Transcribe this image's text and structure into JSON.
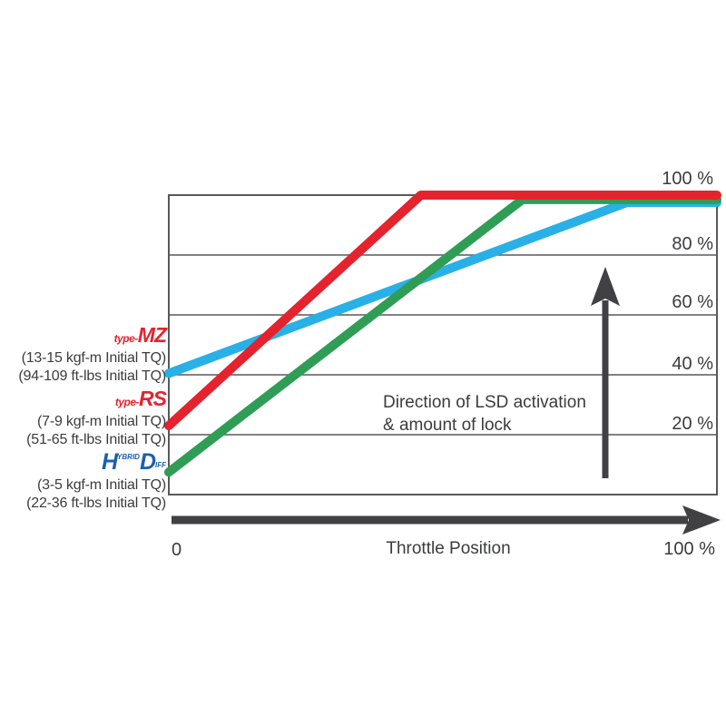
{
  "chart_data": {
    "type": "line",
    "xlabel": "Throttle Position",
    "ylabel": "",
    "x_axis": {
      "min_label": "0",
      "max_label": "100 %"
    },
    "xlim": [
      0,
      100
    ],
    "ylim": [
      0,
      100
    ],
    "grid": true,
    "yticks": [
      100,
      80,
      60,
      40,
      20
    ],
    "ytick_labels": [
      "100 %",
      "80 %",
      "60 %",
      "40 %",
      "20 %"
    ],
    "grid_lines": [
      80,
      60,
      40,
      20
    ],
    "legend_position": "left",
    "annotation": {
      "line1": "Direction of LSD activation",
      "line2": "& amount of lock"
    },
    "series": [
      {
        "name": "type-MZ",
        "color": "#29b0e6",
        "points": [
          [
            0,
            40.5
          ],
          [
            83.5,
            97.5
          ],
          [
            100,
            97.5
          ]
        ]
      },
      {
        "name": "Hybrid HD",
        "color": "#2f9d56",
        "points": [
          [
            0,
            7.5
          ],
          [
            64.5,
            98.5
          ],
          [
            100,
            98.5
          ]
        ]
      },
      {
        "name": "type-RS",
        "color": "#e4232e",
        "points": [
          [
            0,
            23
          ],
          [
            46,
            100
          ],
          [
            100,
            100
          ]
        ]
      }
    ]
  },
  "legend": {
    "items": [
      {
        "id": "type-mz",
        "logo_prefix": "type-",
        "logo_name": "MZ",
        "torque_metric": "(13-15 kgf-m Initial TQ)",
        "torque_imperial": "(94-109 ft-lbs Initial TQ)"
      },
      {
        "id": "type-rs",
        "logo_prefix": "type-",
        "logo_name": "RS",
        "torque_metric": "(7-9 kgf-m Initial TQ)",
        "torque_imperial": "(51-65 ft-lbs Initial TQ)"
      },
      {
        "id": "hybrid-hd",
        "logo_main_1": "H",
        "logo_small_1": "YBRID",
        "logo_main_2": "D",
        "logo_small_2": "IFF",
        "torque_metric": "(3-5 kgf-m Initial TQ)",
        "torque_imperial": "(22-36 ft-lbs Initial TQ)"
      }
    ]
  },
  "colors": {
    "red": "#e4232e",
    "blue": "#29b0e6",
    "green": "#2f9d56",
    "hd_logo_blue": "#1c5fb0",
    "axis_gray": "#414144",
    "grid_gray": "#58595b",
    "text_gray": "#3b3c3e"
  }
}
